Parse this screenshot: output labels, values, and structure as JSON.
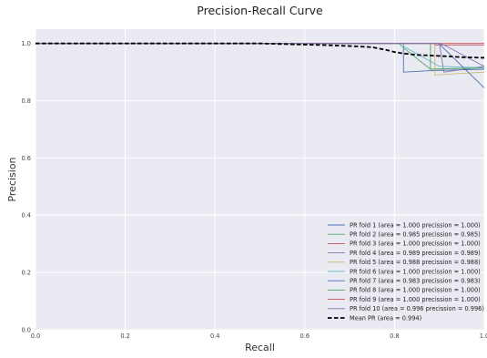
{
  "chart_data": {
    "type": "line",
    "title": "Precision-Recall Curve",
    "xlabel": "Recall",
    "ylabel": "Precision",
    "xlim": [
      0.0,
      1.0
    ],
    "ylim": [
      0.0,
      1.05
    ],
    "xticks": [
      "0.0",
      "0.2",
      "0.4",
      "0.6",
      "0.8",
      "1.0"
    ],
    "yticks": [
      "0.0",
      "0.2",
      "0.4",
      "0.6",
      "0.8",
      "1.0"
    ],
    "grid": true,
    "legend_position": "lower-right",
    "background": "#eaeaf2",
    "series": [
      {
        "name": "PR fold 1 (area = 1.000 precission = 1.000)",
        "color": "#4c72b0",
        "dashed": false,
        "x": [
          0,
          0.82,
          0.82,
          0.88,
          1.0
        ],
        "y": [
          1.0,
          1.0,
          0.9,
          0.905,
          0.91
        ]
      },
      {
        "name": "PR fold 2 (area = 0.985 precission = 0.985)",
        "color": "#55a868",
        "dashed": false,
        "x": [
          0,
          0.81,
          0.82,
          0.88,
          1.0
        ],
        "y": [
          1.0,
          1.0,
          0.985,
          0.91,
          0.915
        ]
      },
      {
        "name": "PR fold 3 (area = 1.000 precission = 1.000)",
        "color": "#c44e52",
        "dashed": false,
        "x": [
          0,
          0.89,
          0.89,
          1.0
        ],
        "y": [
          1.0,
          1.0,
          0.995,
          0.995
        ]
      },
      {
        "name": "PR fold 4 (area = 0.989 precission = 0.989)",
        "color": "#8172b2",
        "dashed": false,
        "x": [
          0,
          0.9,
          0.91,
          1.0
        ],
        "y": [
          1.0,
          1.0,
          0.9,
          0.92
        ]
      },
      {
        "name": "PR fold 5 (area = 0.988 precission = 0.988)",
        "color": "#ccb974",
        "dashed": false,
        "x": [
          0,
          0.89,
          0.89,
          1.0
        ],
        "y": [
          1.0,
          1.0,
          0.89,
          0.9
        ]
      },
      {
        "name": "PR fold 6 (area = 1.000 precission = 1.000)",
        "color": "#64b5cd",
        "dashed": false,
        "x": [
          0,
          0.82,
          0.82,
          0.9,
          1.0
        ],
        "y": [
          1.0,
          1.0,
          0.99,
          0.92,
          0.915
        ]
      },
      {
        "name": "PR fold 7 (area = 0.983 precission = 0.983)",
        "color": "#4c72b0",
        "dashed": false,
        "x": [
          0,
          0.9,
          0.905,
          1.0
        ],
        "y": [
          1.0,
          1.0,
          0.99,
          0.845
        ]
      },
      {
        "name": "PR fold 8 (area = 1.000 precission = 1.000)",
        "color": "#55a868",
        "dashed": false,
        "x": [
          0,
          0.88,
          0.88,
          1.0
        ],
        "y": [
          1.0,
          1.0,
          0.91,
          0.915
        ]
      },
      {
        "name": "PR fold 9 (area = 1.000 precission = 1.000)",
        "color": "#c44e52",
        "dashed": false,
        "x": [
          0,
          0.89,
          0.89,
          1.0
        ],
        "y": [
          1.0,
          1.0,
          1.0,
          1.0
        ]
      },
      {
        "name": "PR fold 10 (area = 0.996 precission = 0.996)",
        "color": "#8172b2",
        "dashed": false,
        "x": [
          0,
          0.9,
          0.91,
          1.0
        ],
        "y": [
          1.0,
          1.0,
          0.995,
          0.92
        ]
      },
      {
        "name": "Mean PR (area = 0.994)",
        "color": "#000000",
        "dashed": true,
        "x": [
          0.0,
          0.5,
          0.55,
          0.6,
          0.65,
          0.7,
          0.75,
          0.78,
          0.8,
          0.82,
          0.85,
          0.88,
          0.92,
          0.95,
          1.0
        ],
        "y": [
          1.0,
          1.0,
          0.998,
          0.996,
          0.994,
          0.991,
          0.987,
          0.978,
          0.97,
          0.965,
          0.96,
          0.958,
          0.955,
          0.952,
          0.95
        ]
      }
    ]
  }
}
